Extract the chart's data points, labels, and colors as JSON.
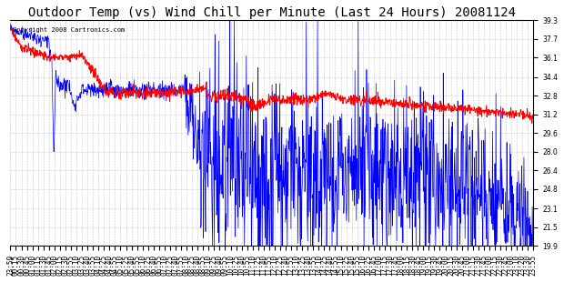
{
  "title": "Outdoor Temp (vs) Wind Chill per Minute (Last 24 Hours) 20081124",
  "copyright": "Copyright 2008 Cartronics.com",
  "ylim": [
    19.9,
    39.3
  ],
  "yticks": [
    19.9,
    21.5,
    23.1,
    24.8,
    26.4,
    28.0,
    29.6,
    31.2,
    32.8,
    34.4,
    36.1,
    37.7,
    39.3
  ],
  "xtick_labels": [
    "23:59",
    "00:15",
    "00:30",
    "00:45",
    "01:00",
    "01:15",
    "01:30",
    "01:45",
    "02:00",
    "02:15",
    "02:30",
    "02:55",
    "03:10",
    "03:25",
    "03:40",
    "03:55",
    "04:10",
    "04:25",
    "04:40",
    "04:55",
    "05:10",
    "05:25",
    "05:40",
    "05:55",
    "06:10",
    "06:25",
    "06:40",
    "06:55",
    "07:10",
    "07:25",
    "07:40",
    "07:55",
    "08:10",
    "08:25",
    "08:40",
    "08:55",
    "09:10",
    "09:25",
    "09:40",
    "09:55",
    "10:10",
    "10:25",
    "10:40",
    "10:55",
    "11:10",
    "11:25",
    "11:40",
    "11:55",
    "12:10",
    "12:25",
    "12:40",
    "12:55",
    "13:10",
    "13:25",
    "13:40",
    "13:55",
    "14:10",
    "14:25",
    "14:40",
    "14:55",
    "15:10",
    "15:25",
    "15:40",
    "15:55",
    "16:10",
    "16:25",
    "16:45",
    "17:00",
    "17:15",
    "17:30",
    "17:45",
    "18:00",
    "18:15",
    "18:30",
    "18:45",
    "19:00",
    "19:15",
    "19:30",
    "19:45",
    "20:00",
    "20:15",
    "20:30",
    "20:45",
    "21:00",
    "21:15",
    "21:30",
    "21:45",
    "22:00",
    "22:15",
    "22:30",
    "22:45",
    "23:00",
    "23:10",
    "23:20",
    "23:30",
    "23:55"
  ],
  "background_color": "#ffffff",
  "plot_bg_color": "#ffffff",
  "grid_color": "#bbbbbb",
  "blue_color": "#0000ff",
  "red_color": "#ff0000",
  "title_fontsize": 10,
  "tick_fontsize": 5.5
}
